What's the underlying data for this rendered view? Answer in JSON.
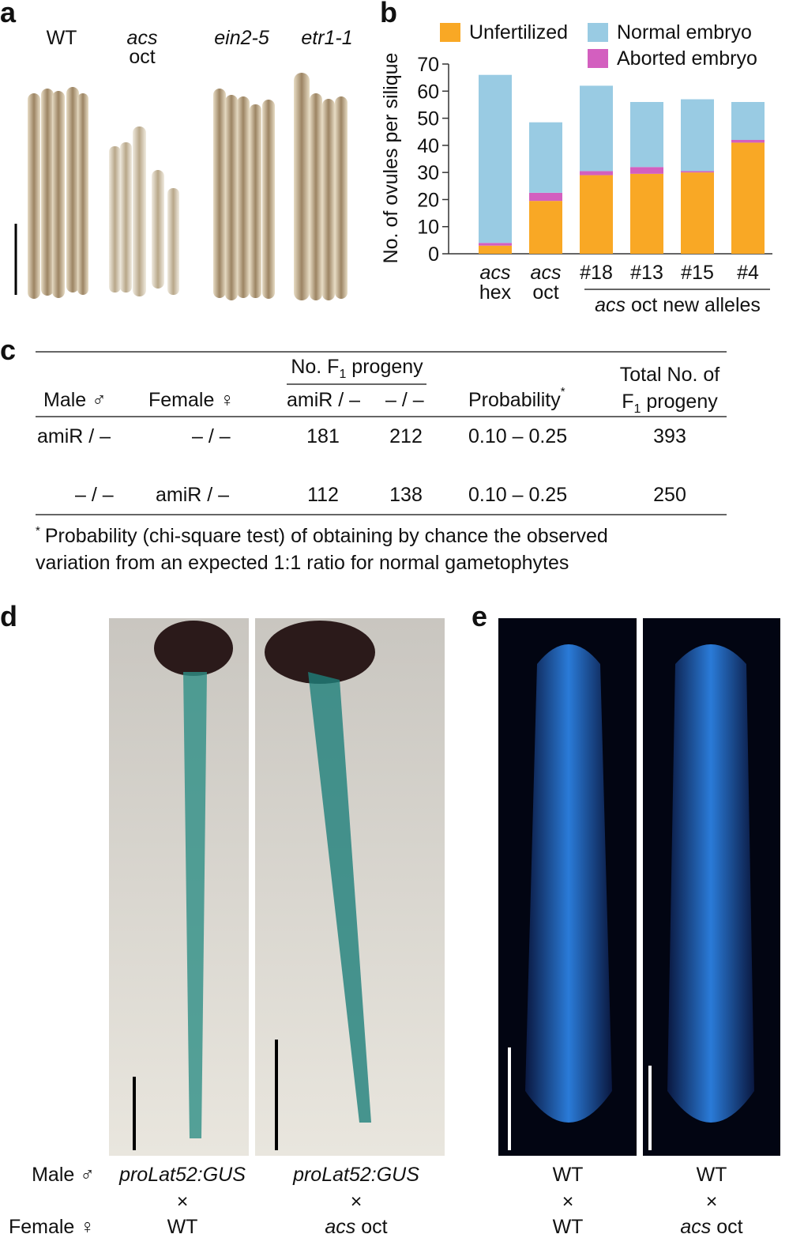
{
  "panel_labels": [
    "a",
    "b",
    "c",
    "d",
    "e"
  ],
  "panel_a": {
    "labels": [
      "WT",
      [
        "acs",
        "oct"
      ],
      "ein2-5",
      "etr1-1"
    ]
  },
  "chart_data": {
    "type": "stacked-bar",
    "y_label": "No. of ovules per silique",
    "categories": [
      [
        "acs",
        "hex"
      ],
      [
        "acs",
        "oct"
      ],
      [
        "#18"
      ],
      [
        "#13"
      ],
      [
        "#15"
      ],
      [
        "#4"
      ]
    ],
    "group_label": [
      "acs",
      "oct new alleles"
    ],
    "series": [
      {
        "name": "Unfertilized",
        "color": "#f9a825",
        "values": [
          3,
          19.5,
          29,
          29.5,
          30,
          41
        ]
      },
      {
        "name": "Aborted embryo",
        "color": "#d35fbf",
        "values": [
          1,
          3,
          1.5,
          2.5,
          0.5,
          1
        ]
      },
      {
        "name": "Normal embryo",
        "color": "#99cbe3",
        "values": [
          62,
          26,
          31.5,
          24,
          26.5,
          14
        ]
      }
    ],
    "ylim": [
      0,
      70
    ],
    "yticks": [
      0,
      10,
      20,
      30,
      40,
      50,
      60,
      70
    ],
    "grid": false
  },
  "table": {
    "group_header": [
      "No. F",
      "1",
      " progeny"
    ],
    "columns": [
      "Male ♂",
      "Female ♀",
      "amiR / –",
      "– / –",
      "Probability"
    ],
    "footnote_mark": "*",
    "total_header": [
      "Total No. of",
      "F",
      "1",
      " progeny"
    ],
    "rows": [
      [
        "amiR / –",
        "– / –",
        181,
        212,
        "0.10 – 0.25",
        393
      ],
      [
        "– / –",
        "amiR / –",
        112,
        138,
        "0.10 – 0.25",
        250
      ]
    ],
    "footnote": [
      "*",
      "Probability (chi-square test) of obtaining by chance the observed",
      "variation from an expected 1:1 ratio for normal gametophytes"
    ]
  },
  "captions": {
    "row_labels": [
      "Male ♂",
      "Female ♀"
    ],
    "d": [
      {
        "male": "proLat52:GUS",
        "cross": "×",
        "female": "WT"
      },
      {
        "male": "proLat52:GUS",
        "cross": "×",
        "female": [
          "acs",
          "oct"
        ]
      }
    ],
    "e": [
      {
        "male": "WT",
        "cross": "×",
        "female": "WT"
      },
      {
        "male": "WT",
        "cross": "×",
        "female": [
          "acs",
          "oct"
        ]
      }
    ]
  }
}
